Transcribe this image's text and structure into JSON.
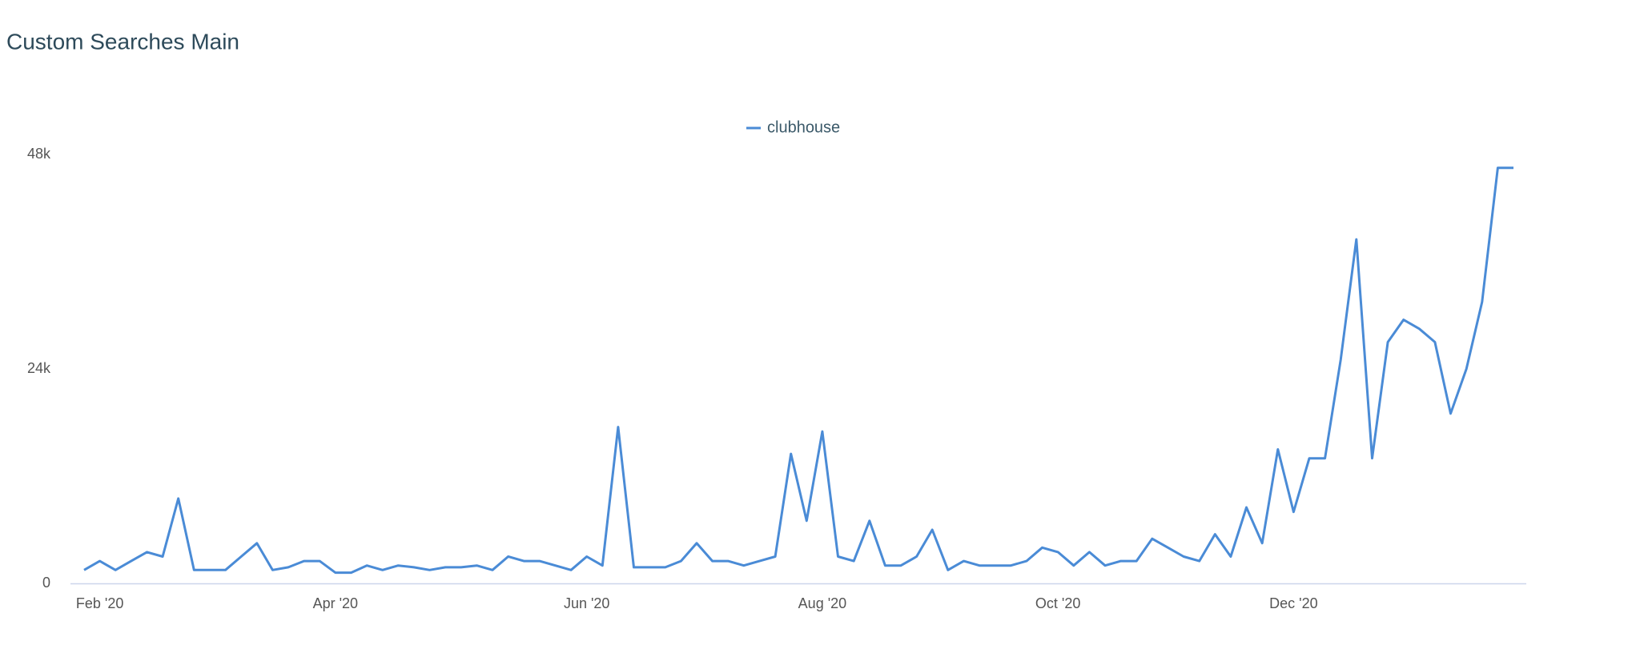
{
  "chart_data": {
    "type": "line",
    "title": "Custom Searches Main",
    "categories": [
      null,
      "Feb '20",
      null,
      null,
      null,
      null,
      null,
      null,
      null,
      null,
      null,
      null,
      null,
      null,
      null,
      null,
      "Apr '20",
      null,
      null,
      null,
      null,
      null,
      null,
      null,
      null,
      null,
      null,
      null,
      null,
      null,
      null,
      null,
      "Jun '20",
      null,
      null,
      null,
      null,
      null,
      null,
      null,
      null,
      null,
      null,
      null,
      null,
      null,
      null,
      "Aug '20",
      null,
      null,
      null,
      null,
      null,
      null,
      null,
      null,
      null,
      null,
      null,
      null,
      null,
      null,
      "Oct '20",
      null,
      null,
      null,
      null,
      null,
      null,
      null,
      null,
      null,
      null,
      null,
      null,
      null,
      null,
      "Dec '20",
      null,
      null,
      null,
      null,
      null,
      null,
      null,
      null,
      null,
      null,
      null,
      null,
      null,
      null
    ],
    "series": [
      {
        "name": "clubhouse",
        "color": "#4a8bd6",
        "values": [
          1500,
          2500,
          1500,
          2500,
          3500,
          3000,
          9500,
          1500,
          1500,
          1500,
          3000,
          4500,
          1500,
          1800,
          2500,
          2500,
          1200,
          1200,
          2000,
          1500,
          2000,
          1800,
          1500,
          1800,
          1800,
          2000,
          1500,
          3000,
          2500,
          2500,
          2000,
          1500,
          3000,
          2000,
          17500,
          1800,
          1800,
          1800,
          2500,
          4500,
          2500,
          2500,
          2000,
          2500,
          3000,
          14500,
          7000,
          17000,
          3000,
          2500,
          7000,
          2000,
          2000,
          3000,
          6000,
          1500,
          2500,
          2000,
          2000,
          2000,
          2500,
          4000,
          3500,
          2000,
          3500,
          2000,
          2500,
          2500,
          5000,
          4000,
          3000,
          2500,
          5500,
          3000,
          8500,
          4500,
          15000,
          8000,
          14000,
          14000,
          25000,
          38500,
          14000,
          27000,
          29500,
          28500,
          27000,
          19000,
          24000,
          31500,
          46500,
          46500
        ]
      }
    ],
    "ylim": [
      0,
      48000
    ],
    "yticks": [
      0,
      {
        "value": 24000,
        "label": "24k"
      },
      {
        "value": 48000,
        "label": "48k"
      }
    ],
    "legend": "top"
  }
}
